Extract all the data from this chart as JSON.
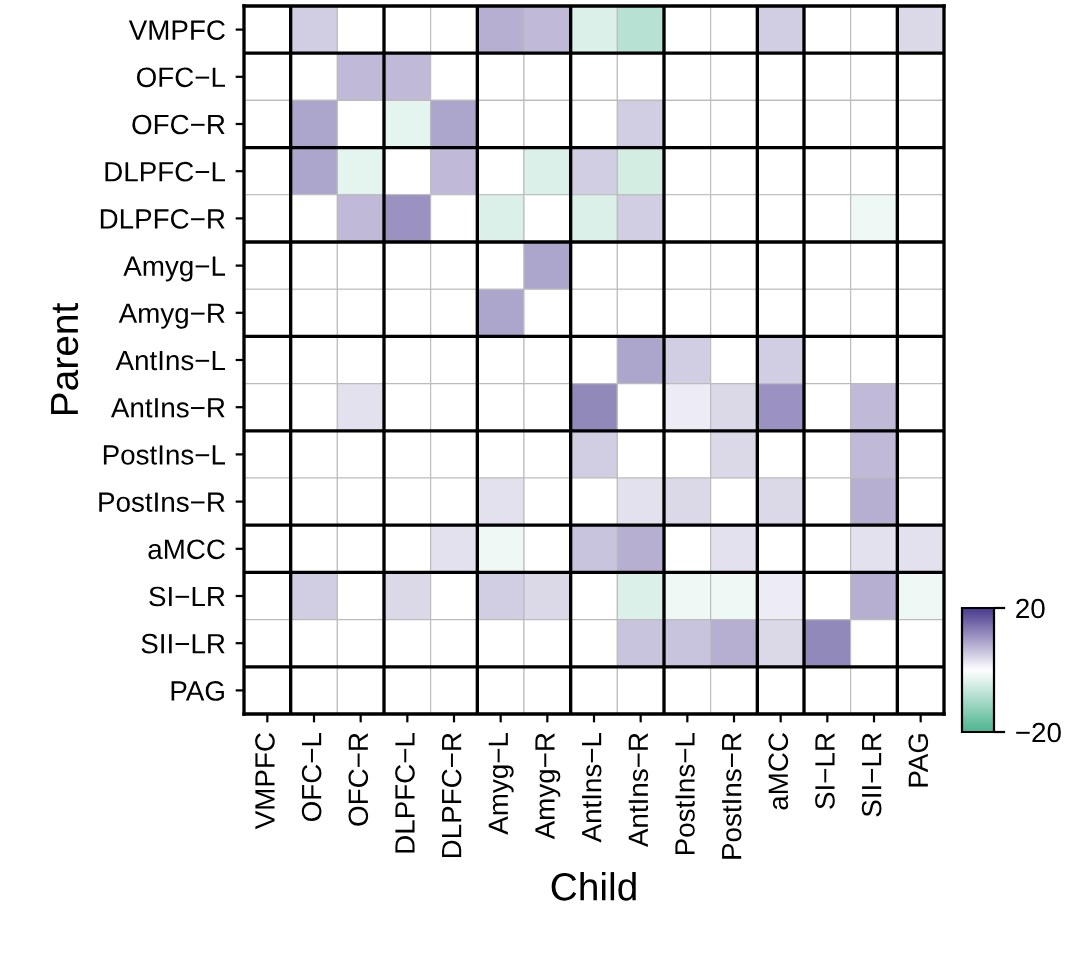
{
  "chart_data": {
    "type": "heatmap",
    "xlabel": "Child",
    "ylabel": "Parent",
    "categories": [
      "VMPFC",
      "OFC−L",
      "OFC−R",
      "DLPFC−L",
      "DLPFC−R",
      "Amyg−L",
      "Amyg−R",
      "AntIns−L",
      "AntIns−R",
      "PostIns−L",
      "PostIns−R",
      "aMCC",
      "SI−LR",
      "SII−LR",
      "PAG"
    ],
    "y_categories": [
      "VMPFC",
      "OFC−L",
      "OFC−R",
      "DLPFC−L",
      "DLPFC−R",
      "Amyg−L",
      "Amyg−R",
      "AntIns−L",
      "AntIns−R",
      "PostIns−L",
      "PostIns−R",
      "aMCC",
      "SI−LR",
      "SII−LR",
      "PAG"
    ],
    "cells": [
      [
        null,
        5,
        null,
        null,
        null,
        8,
        7,
        -4,
        -8,
        null,
        null,
        5,
        null,
        null,
        4
      ],
      [
        null,
        null,
        7,
        7,
        null,
        null,
        null,
        null,
        null,
        null,
        null,
        null,
        null,
        null,
        null
      ],
      [
        null,
        9,
        null,
        -3,
        9,
        null,
        null,
        null,
        5,
        null,
        null,
        null,
        null,
        null,
        null
      ],
      [
        null,
        9,
        -3,
        null,
        7,
        null,
        -4,
        5,
        -5,
        null,
        null,
        null,
        null,
        null,
        null
      ],
      [
        null,
        null,
        7,
        11,
        null,
        -4,
        null,
        -4,
        5,
        null,
        null,
        null,
        null,
        -2,
        null
      ],
      [
        null,
        null,
        null,
        null,
        null,
        null,
        9,
        null,
        null,
        null,
        null,
        null,
        null,
        null,
        null
      ],
      [
        null,
        null,
        null,
        null,
        null,
        9,
        null,
        null,
        null,
        null,
        null,
        null,
        null,
        null,
        null
      ],
      [
        null,
        null,
        null,
        null,
        null,
        null,
        null,
        null,
        9,
        5,
        null,
        5,
        null,
        null,
        null
      ],
      [
        null,
        null,
        3,
        null,
        null,
        null,
        null,
        12,
        null,
        2,
        4,
        11,
        null,
        7,
        null
      ],
      [
        null,
        null,
        null,
        null,
        null,
        null,
        null,
        5,
        null,
        null,
        4,
        null,
        null,
        7,
        null
      ],
      [
        null,
        null,
        null,
        null,
        null,
        3,
        null,
        null,
        3,
        4,
        null,
        4,
        null,
        8,
        null
      ],
      [
        null,
        null,
        null,
        null,
        3,
        -2,
        null,
        6,
        8,
        null,
        3,
        null,
        null,
        3,
        3
      ],
      [
        null,
        5,
        null,
        4,
        null,
        5,
        4,
        null,
        -4,
        -2,
        -2,
        2,
        null,
        8,
        -2
      ],
      [
        null,
        null,
        null,
        null,
        null,
        null,
        null,
        null,
        6,
        6,
        8,
        4,
        12,
        null,
        null
      ],
      [
        null,
        null,
        null,
        null,
        null,
        null,
        null,
        null,
        null,
        null,
        null,
        null,
        null,
        null,
        null
      ]
    ],
    "clim": [
      -20,
      20
    ],
    "cticks": [
      20,
      -20
    ]
  }
}
